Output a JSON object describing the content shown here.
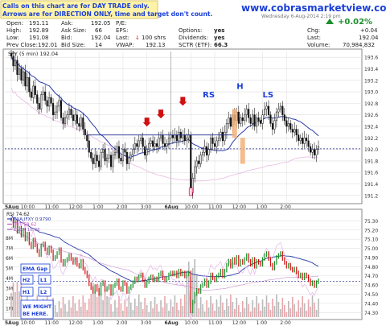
{
  "banner": {
    "line1": "Calls on this chart are for DAY TRADE only.",
    "line2": "Arrows are for DIRECTION ONLY, time and target don't count.",
    "website": "www.cobrasmarketview.com",
    "datetime": "Wednesday 6-Aug-2014 2:19 pm",
    "color_text": "#1a3fd8",
    "color_bg": "#fff3a8"
  },
  "quote": {
    "open_label": "Open:",
    "open": "191.11",
    "high_label": "High:",
    "high": "192.89",
    "low_label": "Low:",
    "low": "191.08",
    "prev_label": "Prev Close:",
    "prev": "192.01",
    "ask_label": "Ask:",
    "ask": "192.05",
    "asksize_label": "Ask Size:",
    "asksize": "66",
    "bid_label": "Bid:",
    "bid": "192.04",
    "bidsize_label": "Bid Size:",
    "bidsize": "14",
    "pe_label": "P/E:",
    "pe": "",
    "eps_label": "EPS:",
    "eps": "",
    "last_label": "Last:",
    "last": "100 shrs",
    "vwap_label": "VWAP:",
    "vwap": "192.13",
    "options_label": "Options:",
    "options": "yes",
    "dividends_label": "Dividends:",
    "dividends": "yes",
    "sctr_label": "SCTR (ETF):",
    "sctr": "66.3",
    "pct_change": "+0.02%",
    "chg_label": "Chg:",
    "chg": "+0.04",
    "last2_label": "Last:",
    "last2": "192.04",
    "volume_label": "Volume:",
    "volume": "70,984,832",
    "up_color": "#1a8f2a",
    "down_color": "#d01010"
  },
  "chart_data": [
    {
      "type": "line",
      "title": "SPY (5 min) 192.04",
      "x_tick_labels": [
        "5Aug",
        "10:00",
        "11:00",
        "12:00",
        "1:00",
        "2:00",
        "3:00",
        "6Aug",
        "10:00",
        "11:00",
        "12:00",
        "1:00",
        "2:00"
      ],
      "y_ticks": [
        191.2,
        191.4,
        191.6,
        191.8,
        192.0,
        192.2,
        192.4,
        192.6,
        192.8,
        193.0,
        193.2,
        193.4,
        193.6
      ],
      "ylim": [
        191.1,
        193.7
      ],
      "grid": true,
      "annotations": [
        "RS",
        "H",
        "LS"
      ],
      "reference_lines": [
        {
          "name": "neckline",
          "value": 192.25
        },
        {
          "name": "prev close",
          "value": 192.01
        }
      ],
      "series": [
        {
          "x": [
            0,
            1,
            2,
            3,
            4,
            5,
            6,
            7,
            8,
            9,
            10,
            11,
            12,
            13,
            14,
            15,
            16,
            17,
            18,
            19,
            20,
            21,
            22,
            23,
            24,
            25,
            26,
            27,
            28,
            29,
            30,
            31,
            32,
            33,
            34,
            35,
            36,
            37,
            38,
            39,
            40,
            41,
            42,
            43,
            44,
            45,
            46,
            47,
            48,
            49,
            50,
            51,
            52,
            53,
            54,
            55,
            56,
            57,
            58,
            59,
            60,
            61,
            62,
            63,
            64,
            65,
            66,
            67,
            68,
            69,
            70,
            71,
            72,
            73,
            74,
            75,
            76,
            77,
            78,
            79,
            80,
            81,
            82,
            83,
            84,
            85,
            86,
            87,
            88,
            89,
            90,
            91,
            92,
            93,
            94,
            95,
            96,
            97,
            98,
            99,
            100,
            101,
            102,
            103,
            104,
            105,
            106,
            107,
            108,
            109,
            110,
            111,
            112,
            113,
            114,
            115,
            116,
            117,
            118,
            119,
            120,
            121,
            122,
            123,
            124,
            125,
            126,
            127,
            128,
            129,
            130,
            131,
            132,
            133,
            134,
            135,
            136,
            137,
            138,
            139,
            140,
            141,
            142,
            143,
            144,
            145,
            146,
            147,
            148,
            149,
            150,
            151,
            152,
            153,
            154
          ],
          "values": [
            193.62,
            193.45,
            193.55,
            193.3,
            193.4,
            193.2,
            193.35,
            193.1,
            193.25,
            193.0,
            192.9,
            193.1,
            192.95,
            192.8,
            192.7,
            192.95,
            193.0,
            192.85,
            192.75,
            192.9,
            192.8,
            192.6,
            192.65,
            192.75,
            192.85,
            192.55,
            192.45,
            192.55,
            192.6,
            192.7,
            192.6,
            192.5,
            192.6,
            192.45,
            192.4,
            192.55,
            192.35,
            192.25,
            192.15,
            191.95,
            191.85,
            191.75,
            191.9,
            191.8,
            191.7,
            191.95,
            192.0,
            191.8,
            191.85,
            191.9,
            191.7,
            191.9,
            191.95,
            192.05,
            191.85,
            191.8,
            192.0,
            191.95,
            191.75,
            191.85,
            191.9,
            192.0,
            192.1,
            192.05,
            192.15,
            192.2,
            192.05,
            191.9,
            192.0,
            192.1,
            192.15,
            192.05,
            192.1,
            192.05,
            192.2,
            192.25,
            192.1,
            192.05,
            192.1,
            192.2,
            192.25,
            192.2,
            192.25,
            192.15,
            192.3,
            192.2,
            192.25,
            192.15,
            192.2,
            192.25,
            191.25,
            191.5,
            191.7,
            191.8,
            191.75,
            191.9,
            191.95,
            192.05,
            191.9,
            192.0,
            192.2,
            192.1,
            192.05,
            192.15,
            192.2,
            192.3,
            192.15,
            192.3,
            192.45,
            192.55,
            192.4,
            192.6,
            192.5,
            192.65,
            192.45,
            192.55,
            192.5,
            192.6,
            192.7,
            192.55,
            192.45,
            192.6,
            192.4,
            192.55,
            192.5,
            192.45,
            192.6,
            192.7,
            192.75,
            192.6,
            192.45,
            192.35,
            192.5,
            192.65,
            192.7,
            192.75,
            192.6,
            192.5,
            192.4,
            192.45,
            192.35,
            192.3,
            192.35,
            192.25,
            192.15,
            192.2,
            192.1,
            192.2,
            192.15,
            192.05,
            191.95,
            192.0,
            191.9,
            192.0,
            192.05
          ],
          "name": ""
        }
      ]
    },
    {
      "type": "line",
      "title": "RSI 74.62",
      "legend": [
        "PXA:IFXY 0.9790",
        "TBT 59.62",
        "EVXX 16.36"
      ],
      "ylim": [
        74.25,
        75.4
      ],
      "y_ticks": [
        74.3,
        74.4,
        74.5,
        74.6,
        74.7,
        74.8,
        74.9,
        75.0,
        75.1,
        75.2,
        75.3
      ],
      "volume_ticks": [
        "8M",
        "7M",
        "6M",
        "5M",
        "4M",
        "3M",
        "2M",
        "1M"
      ],
      "x_tick_labels": [
        "5Aug",
        "10:00",
        "11:00",
        "12:00",
        "1:00",
        "2:00",
        "3:00",
        "6Aug",
        "10:00",
        "11:00",
        "12:00",
        "1:00",
        "2:00"
      ],
      "annotations": [
        "EMA Gap",
        "H2",
        "L1",
        "H1",
        "L2",
        "WE MIGHT BE HERE."
      ]
    }
  ]
}
